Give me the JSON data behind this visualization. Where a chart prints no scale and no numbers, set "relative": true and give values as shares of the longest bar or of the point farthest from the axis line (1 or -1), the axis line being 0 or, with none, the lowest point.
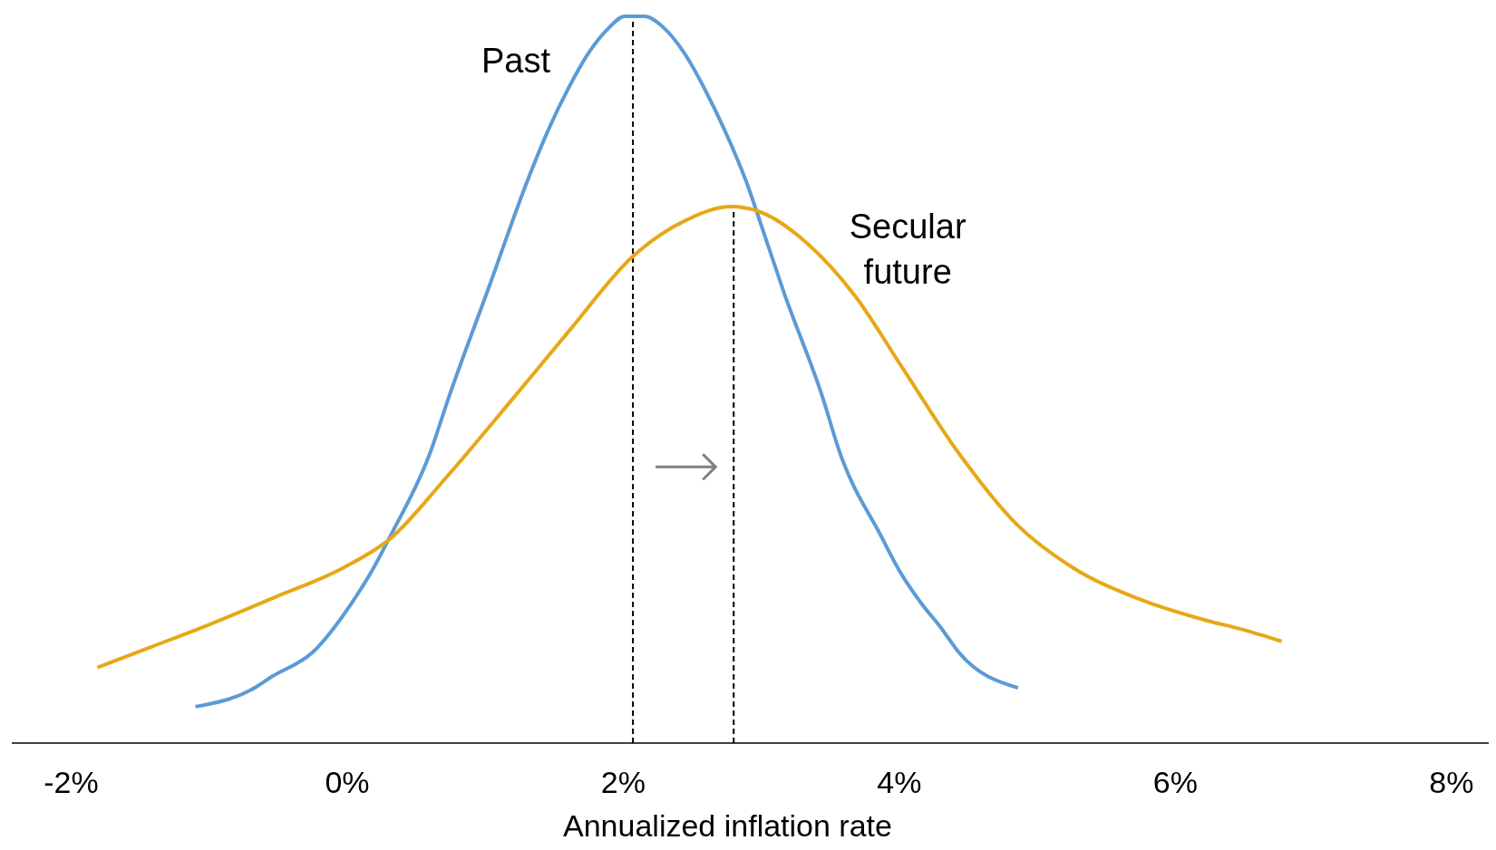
{
  "chart_data": {
    "type": "line",
    "relative": true,
    "xlabel": "Annualized inflation rate",
    "xlim": [
      -2.43,
      8.27
    ],
    "xticks": [
      {
        "value": -2,
        "label": "-2%"
      },
      {
        "value": 0,
        "label": "0%"
      },
      {
        "value": 2,
        "label": "2%"
      },
      {
        "value": 4,
        "label": "4%"
      },
      {
        "value": 6,
        "label": "6%"
      },
      {
        "value": 8,
        "label": "8%"
      }
    ],
    "grid": false,
    "line_style": "solid",
    "ref_lines": [
      {
        "axis": "x",
        "value": 2.07,
        "label": null,
        "line_style": "dashed",
        "color": "#000000"
      },
      {
        "axis": "x",
        "value": 2.8,
        "label": null,
        "line_style": "dashed",
        "color": "#000000"
      }
    ],
    "series": [
      {
        "name": "Past",
        "color": "#5b9bd5",
        "x": [
          -1.1,
          -0.67,
          -0.55,
          -0.25,
          0.03,
          0.17,
          0.31,
          0.6,
          0.74,
          1.03,
          1.31,
          1.46,
          1.6,
          1.75,
          1.89,
          2.01,
          2.15,
          2.3,
          2.44,
          2.59,
          2.74,
          2.89,
          3.02,
          3.16,
          3.44,
          3.57,
          3.87,
          4.01,
          4.16,
          4.3,
          4.43,
          4.86
        ],
        "values": [
          0.05,
          0.076,
          0.091,
          0.125,
          0.192,
          0.234,
          0.284,
          0.399,
          0.478,
          0.629,
          0.776,
          0.845,
          0.9,
          0.95,
          0.983,
          1,
          1,
          0.983,
          0.95,
          0.9,
          0.841,
          0.773,
          0.701,
          0.622,
          0.478,
          0.399,
          0.284,
          0.234,
          0.192,
          0.159,
          0.125,
          0.076
        ]
      },
      {
        "name": "Secular future",
        "color": "#e6a817",
        "x": [
          -1.81,
          -1.41,
          -1.0,
          -0.52,
          -0.03,
          0.31,
          0.72,
          1.2,
          1.62,
          2.06,
          2.44,
          2.78,
          2.99,
          3.33,
          3.68,
          4.02,
          4.43,
          4.85,
          5.26,
          5.74,
          6.22,
          6.49,
          6.77
        ],
        "values": [
          0.104,
          0.133,
          0.163,
          0.201,
          0.241,
          0.281,
          0.366,
          0.474,
          0.57,
          0.668,
          0.718,
          0.738,
          0.731,
          0.688,
          0.615,
          0.517,
          0.399,
          0.301,
          0.241,
          0.198,
          0.169,
          0.156,
          0.14
        ]
      }
    ]
  }
}
